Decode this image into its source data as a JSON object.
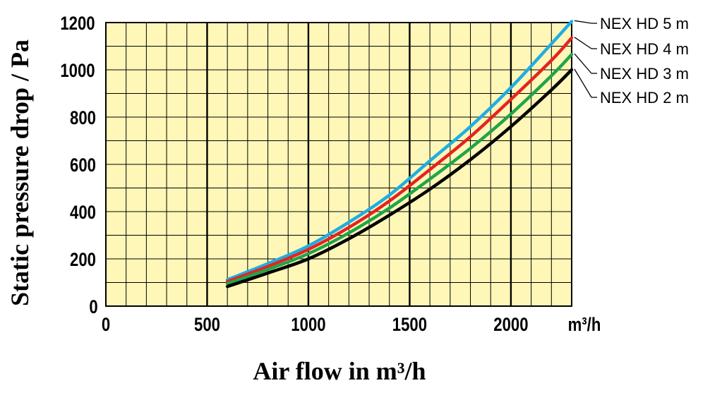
{
  "chart_data": {
    "type": "line",
    "xlabel": "Air flow in m³/h",
    "ylabel": "Static pressure drop / Pa",
    "x_unit": "m³/h",
    "xlim": [
      0,
      2300
    ],
    "ylim": [
      0,
      1200
    ],
    "x_ticks": [
      0,
      500,
      1000,
      1500,
      2000
    ],
    "y_ticks": [
      0,
      200,
      400,
      600,
      800,
      1000,
      1200
    ],
    "grid": true,
    "background_color": "#fef7b8",
    "legend_position": "right",
    "series": [
      {
        "name": "NEX HD 5 m",
        "color": "#1eaee3",
        "x": [
          600,
          800,
          1000,
          1200,
          1400,
          1600,
          1800,
          2000,
          2200,
          2300
        ],
        "y": [
          112,
          180,
          255,
          355,
          470,
          615,
          760,
          925,
          1110,
          1205
        ]
      },
      {
        "name": "NEX HD 4 m",
        "color": "#e52321",
        "x": [
          600,
          800,
          1000,
          1200,
          1400,
          1600,
          1800,
          2000,
          2200,
          2300
        ],
        "y": [
          104,
          168,
          240,
          333,
          445,
          578,
          717,
          875,
          1040,
          1135
        ]
      },
      {
        "name": "NEX HD 3 m",
        "color": "#1fa54a",
        "x": [
          600,
          800,
          1000,
          1200,
          1400,
          1600,
          1800,
          2000,
          2200,
          2300
        ],
        "y": [
          95,
          155,
          222,
          310,
          415,
          538,
          668,
          813,
          975,
          1065
        ]
      },
      {
        "name": "NEX HD 2 m",
        "color": "#000000",
        "x": [
          600,
          800,
          1000,
          1200,
          1400,
          1600,
          1800,
          2000,
          2200,
          2300
        ],
        "y": [
          83,
          140,
          200,
          285,
          385,
          495,
          620,
          760,
          915,
          1000
        ]
      }
    ]
  }
}
